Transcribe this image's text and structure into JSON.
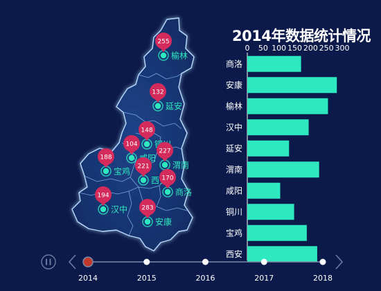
{
  "chart_data": {
    "type": "bar",
    "title": "2014年数据统计情况",
    "categories": [
      "商洛",
      "安康",
      "榆林",
      "汉中",
      "延安",
      "渭南",
      "咸阳",
      "铜川",
      "宝鸡",
      "西安"
    ],
    "values": [
      170,
      283,
      255,
      194,
      132,
      227,
      104,
      148,
      188,
      221
    ],
    "xlim": [
      0,
      300
    ],
    "xticks": [
      0,
      50,
      100,
      150,
      200,
      250,
      300
    ],
    "bar_color": "#2ee8c0",
    "map_points": [
      {
        "city": "榆林",
        "value": 255
      },
      {
        "city": "延安",
        "value": 132
      },
      {
        "city": "铜川",
        "value": 148
      },
      {
        "city": "咸阳",
        "value": 104
      },
      {
        "city": "渭南",
        "value": 227
      },
      {
        "city": "宝鸡",
        "value": 188
      },
      {
        "city": "西安",
        "value": 221
      },
      {
        "city": "商洛",
        "value": 170
      },
      {
        "city": "汉中",
        "value": 194
      },
      {
        "city": "安康",
        "value": 283
      }
    ],
    "pin_color": "#d42a5c",
    "marker_color": "#2ee8c0"
  },
  "timeline": {
    "years": [
      "2014",
      "2015",
      "2016",
      "2017",
      "2018"
    ],
    "current": "2014",
    "play_icon": "pause-icon",
    "prev_icon": "chevron-left-icon",
    "next_icon": "chevron-right-icon"
  },
  "colors": {
    "background": "#0b1a4a",
    "map_fill": "#1a3a78",
    "map_border": "#a9d3ff",
    "text": "#ffffff"
  }
}
